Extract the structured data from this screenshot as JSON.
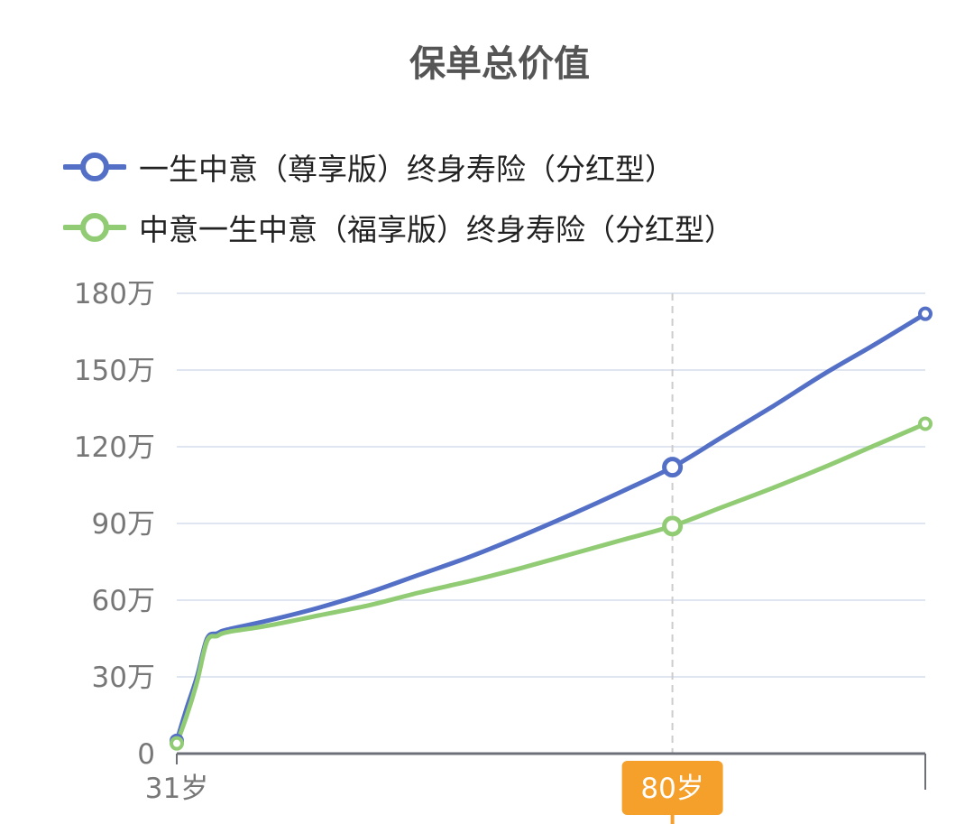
{
  "chart_data": {
    "type": "line",
    "title": "保单总价值",
    "x_unit": "岁",
    "y_unit": "万",
    "xlim": [
      31,
      105
    ],
    "ylim": [
      0,
      180
    ],
    "y_ticks": [
      0,
      30,
      60,
      90,
      120,
      150,
      180
    ],
    "y_tick_labels": [
      "0",
      "30万",
      "60万",
      "90万",
      "120万",
      "150万",
      "180万"
    ],
    "x_tick_labels": [
      "31岁"
    ],
    "grid": true,
    "legend_position": "top-left",
    "highlight": {
      "x": 80,
      "label": "80岁"
    },
    "series": [
      {
        "name": "一生中意（尊享版）终身寿险（分红型）",
        "color": "#5470c6",
        "points": [
          [
            31,
            5
          ],
          [
            32,
            18
          ],
          [
            33,
            30
          ],
          [
            34,
            45
          ],
          [
            35,
            47
          ],
          [
            36,
            48.5
          ],
          [
            40,
            52
          ],
          [
            45,
            57
          ],
          [
            50,
            63
          ],
          [
            55,
            70
          ],
          [
            60,
            77
          ],
          [
            65,
            85
          ],
          [
            70,
            93.5
          ],
          [
            75,
            102.5
          ],
          [
            80,
            112
          ],
          [
            85,
            124
          ],
          [
            90,
            136
          ],
          [
            95,
            148.5
          ],
          [
            100,
            160
          ],
          [
            105,
            172
          ]
        ]
      },
      {
        "name": "中意一生中意（福享版）终身寿险（分红型）",
        "color": "#91cc75",
        "points": [
          [
            31,
            4
          ],
          [
            32,
            15
          ],
          [
            33,
            28
          ],
          [
            34,
            44
          ],
          [
            35,
            46
          ],
          [
            36,
            47.5
          ],
          [
            40,
            50
          ],
          [
            45,
            54
          ],
          [
            50,
            58
          ],
          [
            55,
            63
          ],
          [
            60,
            67.5
          ],
          [
            65,
            72.5
          ],
          [
            70,
            78
          ],
          [
            75,
            83.5
          ],
          [
            80,
            89
          ],
          [
            85,
            96.5
          ],
          [
            90,
            104
          ],
          [
            95,
            112
          ],
          [
            100,
            120.5
          ],
          [
            105,
            129
          ]
        ]
      }
    ]
  }
}
